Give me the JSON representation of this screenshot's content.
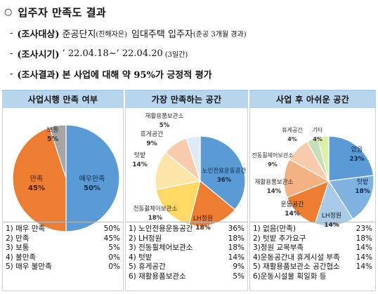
{
  "header": {
    "bullet": "○",
    "title": "입주자 만족도 결과"
  },
  "info": [
    {
      "dash": "-",
      "label": "(조사대상)",
      "text": "준공단지",
      "small": "(진해자은)",
      "text2": "임대주택 입주자",
      "small2": "(준공 3개월 경과)"
    },
    {
      "dash": "-",
      "label": "(조사시기)",
      "text": "’ 22.04.18~’ 22.04.20",
      "small": "(3일간)"
    },
    {
      "dash": "-",
      "label": "(조사결과)",
      "bold_text": "본 사업에 대해 약 95%가 긍정적 평가"
    }
  ],
  "panels": [
    {
      "heading": "사업시행 만족 여부",
      "chart_data": {
        "type": "pie",
        "categories": [
          "매우만족",
          "만족",
          "보통",
          "불만족",
          "매우 불만족"
        ],
        "values": [
          50,
          45,
          5,
          0,
          0
        ],
        "labels": [
          {
            "name": "매우만족",
            "value": "50%"
          },
          {
            "name": "만족",
            "value": "45%"
          },
          {
            "name": "보통",
            "value": "5%"
          }
        ],
        "colors": [
          "#5b9bd5",
          "#ed7d31",
          "#a5a5a5"
        ]
      },
      "list": [
        {
          "label": "1) 매우 만족",
          "value": "50%"
        },
        {
          "label": "2) 만족",
          "value": "45%"
        },
        {
          "label": "3) 보통",
          "value": "5%"
        },
        {
          "label": "4) 불만족",
          "value": "0%"
        },
        {
          "label": "5) 매우 불만족",
          "value": "0%"
        }
      ]
    },
    {
      "heading": "가장 만족하는 공간",
      "chart_data": {
        "type": "pie",
        "categories": [
          "노인전용운동공간",
          "LH정원",
          "전동휠체어보관소",
          "텃밭",
          "휴게공간",
          "재활용품보관소"
        ],
        "values": [
          36,
          18,
          18,
          14,
          9,
          5
        ],
        "labels": [
          {
            "name": "노인전용운동공간",
            "value": "36%"
          },
          {
            "name": "LH정원",
            "value": "18%"
          },
          {
            "name": "전동휠체어보관소",
            "value": "18%"
          },
          {
            "name": "텃밭",
            "value": "14%"
          },
          {
            "name": "휴게공간",
            "value": "9%"
          },
          {
            "name": "재활용품보관소",
            "value": "5%"
          }
        ],
        "colors": [
          "#5b9bd5",
          "#ed7d31",
          "#ffd966",
          "#fbe5a8",
          "#f8cbad",
          "#deebf7"
        ]
      },
      "list": [
        {
          "label": "1) 노인전용운동공간",
          "value": "36%"
        },
        {
          "label": "2) LH정원",
          "value": "18%"
        },
        {
          "label": "3) 전동휠체어보관소",
          "value": "18%"
        },
        {
          "label": "4) 텃밭",
          "value": "14%"
        },
        {
          "label": "5) 휴게공간",
          "value": "9%"
        },
        {
          "label": "6) 재활용품보관소",
          "value": "5%"
        }
      ]
    },
    {
      "heading": "사업 후 아쉬운 공간",
      "chart_data": {
        "type": "pie",
        "categories": [
          "없음",
          "텃밭",
          "LH정원",
          "운동공간",
          "재활용품보관소",
          "전동휠체어보관소",
          "휴게공간",
          "기타"
        ],
        "values": [
          23,
          18,
          14,
          14,
          14,
          9,
          4,
          4
        ],
        "labels": [
          {
            "name": "없음",
            "value": "23%"
          },
          {
            "name": "텃밭",
            "value": "18%"
          },
          {
            "name": "LH정원",
            "value": "14%"
          },
          {
            "name": "운동공간",
            "value": "14%"
          },
          {
            "name": "재활용품보관소",
            "value": "14%"
          },
          {
            "name": "전동휠체어보관소",
            "value": "9%"
          },
          {
            "name": "휴게공간",
            "value": "4%"
          },
          {
            "name": "기타",
            "value": "4%"
          }
        ],
        "colors": [
          "#5b9bd5",
          "#7fb2e0",
          "#a9cbea",
          "#ed7d31",
          "#f4b183",
          "#f8cbad",
          "#c5e0b4",
          "#d9f2a8"
        ]
      },
      "list": [
        {
          "label": "1) 없음(만족)",
          "value": "23%"
        },
        {
          "label": "2) 텃밭 추가요구",
          "value": "18%"
        },
        {
          "label": "3)정원 교목부족",
          "value": "14%"
        },
        {
          "label": "4)운동공간내 휴게시설 부족",
          "value": "14%"
        },
        {
          "label": "5) 재활용품보관소 공간협소",
          "value": "14%"
        },
        {
          "label": "6)운동시설물 획일화 등",
          "value": ""
        }
      ]
    }
  ]
}
